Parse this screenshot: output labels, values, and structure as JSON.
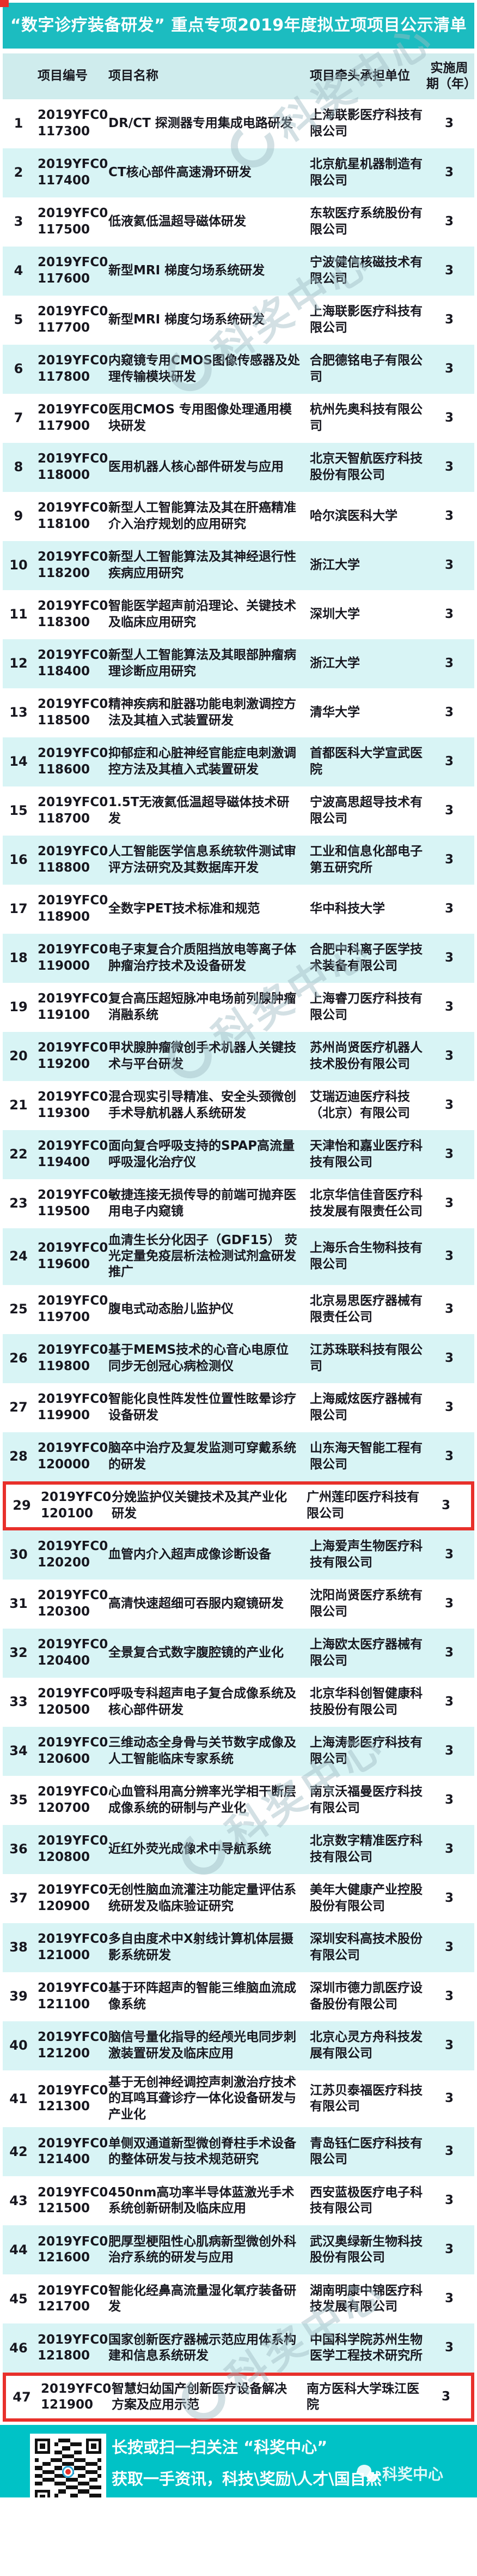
{
  "page": {
    "title": "“数字诊疗装备研发” 重点专项2019年度拟立项项目公示清单"
  },
  "table": {
    "headers": {
      "code": "项目编号",
      "name": "项目名称",
      "org": "项目牵头承担单位",
      "period": "实施周期（年）"
    },
    "rows": [
      {
        "no": "1",
        "code": "2019YFC0 117300",
        "name": "DR/CT 探测器专用集成电路研发",
        "org": "上海联影医疗科技有限公司",
        "period": "3",
        "highlight": false
      },
      {
        "no": "2",
        "code": "2019YFC0 117400",
        "name": "CT核心部件高速滑环研发",
        "org": "北京航星机器制造有限公司",
        "period": "3",
        "highlight": false
      },
      {
        "no": "3",
        "code": "2019YFC0 117500",
        "name": "低液氦低温超导磁体研发",
        "org": "东软医疗系统股份有限公司",
        "period": "3",
        "highlight": false
      },
      {
        "no": "4",
        "code": "2019YFC0 117600",
        "name": "新型MRI 梯度匀场系统研发",
        "org": "宁波健信核磁技术有限公司",
        "period": "3",
        "highlight": false
      },
      {
        "no": "5",
        "code": "2019YFC0 117700",
        "name": "新型MRI 梯度匀场系统研发",
        "org": "上海联影医疗科技有限公司",
        "period": "3",
        "highlight": false
      },
      {
        "no": "6",
        "code": "2019YFC0 117800",
        "name": "内窥镜专用CMOS图像传感器及处理传输模块研发",
        "org": "合肥德铭电子有限公司",
        "period": "3",
        "highlight": false
      },
      {
        "no": "7",
        "code": "2019YFC0 117900",
        "name": "医用CMOS 专用图像处理通用模块研发",
        "org": "杭州先奥科技有限公司",
        "period": "3",
        "highlight": false
      },
      {
        "no": "8",
        "code": "2019YFC0 118000",
        "name": "医用机器人核心部件研发与应用",
        "org": "北京天智航医疗科技股份有限公司",
        "period": "3",
        "highlight": false
      },
      {
        "no": "9",
        "code": "2019YFC0 118100",
        "name": "新型人工智能算法及其在肝癌精准介入治疗规划的应用研究",
        "org": "哈尔滨医科大学",
        "period": "3",
        "highlight": false
      },
      {
        "no": "10",
        "code": "2019YFC0 118200",
        "name": "新型人工智能算法及其神经退行性疾病应用研究",
        "org": "浙江大学",
        "period": "3",
        "highlight": false
      },
      {
        "no": "11",
        "code": "2019YFC0 118300",
        "name": "智能医学超声前沿理论、关键技术及临床应用研究",
        "org": "深圳大学",
        "period": "3",
        "highlight": false
      },
      {
        "no": "12",
        "code": "2019YFC0 118400",
        "name": "新型人工智能算法及其眼部肿瘤病理诊断应用研究",
        "org": "浙江大学",
        "period": "3",
        "highlight": false
      },
      {
        "no": "13",
        "code": "2019YFC0 118500",
        "name": "精神疾病和脏器功能电刺激调控方法及其植入式装置研发",
        "org": "清华大学",
        "period": "3",
        "highlight": false
      },
      {
        "no": "14",
        "code": "2019YFC0 118600",
        "name": "抑郁症和心脏神经官能症电刺激调控方法及其植入式装置研发",
        "org": "首都医科大学宣武医院",
        "period": "3",
        "highlight": false
      },
      {
        "no": "15",
        "code": "2019YFC0 118700",
        "name": "1.5T无液氦低温超导磁体技术研发",
        "org": "宁波高思超导技术有限公司",
        "period": "3",
        "highlight": false
      },
      {
        "no": "16",
        "code": "2019YFC0 118800",
        "name": "人工智能医学信息系统软件测试审评方法研究及其数据库开发",
        "org": "工业和信息化部电子第五研究所",
        "period": "3",
        "highlight": false
      },
      {
        "no": "17",
        "code": "2019YFC0 118900",
        "name": "全数字PET技术标准和规范",
        "org": "华中科技大学",
        "period": "3",
        "highlight": false
      },
      {
        "no": "18",
        "code": "2019YFC0 119000",
        "name": "电子束复合介质阻挡放电等离子体肿瘤治疗技术及设备研发",
        "org": "合肥中科离子医学技术装备有限公司",
        "period": "3",
        "highlight": false
      },
      {
        "no": "19",
        "code": "2019YFC0 119100",
        "name": "复合高压超短脉冲电场前列腺肿瘤消融系统",
        "org": "上海睿刀医疗科技有限公司",
        "period": "3",
        "highlight": false
      },
      {
        "no": "20",
        "code": "2019YFC0 119200",
        "name": "甲状腺肿瘤微创手术机器人关键技术与平台研发",
        "org": "苏州尚贤医疗机器人技术股份有限公司",
        "period": "3",
        "highlight": false
      },
      {
        "no": "21",
        "code": "2019YFC0 119300",
        "name": "混合现实引导精准、安全头颈微创手术导航机器人系统研发",
        "org": "艾瑞迈迪医疗科技（北京）有限公司",
        "period": "3",
        "highlight": false
      },
      {
        "no": "22",
        "code": "2019YFC0 119400",
        "name": "面向复合呼吸支持的SPAP高流量呼吸湿化治疗仪",
        "org": "天津怡和嘉业医疗科技有限公司",
        "period": "3",
        "highlight": false
      },
      {
        "no": "23",
        "code": "2019YFC0 119500",
        "name": "敏捷连接无损传导的前端可抛弃医用电子内窥镜",
        "org": "北京华信佳音医疗科技发展有限责任公司",
        "period": "3",
        "highlight": false
      },
      {
        "no": "24",
        "code": "2019YFC0 119600",
        "name": "血清生长分化因子（GDF15） 荧光定量免疫层析法检测试剂盒研发推广",
        "org": "上海乐合生物科技有限公司",
        "period": "3",
        "highlight": false
      },
      {
        "no": "25",
        "code": "2019YFC0 119700",
        "name": "腹电式动态胎儿监护仪",
        "org": "北京易思医疗器械有限责任公司",
        "period": "3",
        "highlight": false
      },
      {
        "no": "26",
        "code": "2019YFC0 119800",
        "name": "基于MEMS技术的心音心电原位同步无创冠心病检测仪",
        "org": "江苏珠联科技有限公司",
        "period": "3",
        "highlight": false
      },
      {
        "no": "27",
        "code": "2019YFC0 119900",
        "name": "智能化良性阵发性位置性眩晕诊疗设备研发",
        "org": "上海威炫医疗器械有限公司",
        "period": "3",
        "highlight": false
      },
      {
        "no": "28",
        "code": "2019YFC0 120000",
        "name": "脑卒中治疗及复发监测可穿戴系统的研发",
        "org": "山东海天智能工程有限公司",
        "period": "3",
        "highlight": false
      },
      {
        "no": "29",
        "code": "2019YFC0 120100",
        "name": "分娩监护仪关键技术及其产业化研发",
        "org": "广州莲印医疗科技有限公司",
        "period": "3",
        "highlight": true
      },
      {
        "no": "30",
        "code": "2019YFC0 120200",
        "name": "血管内介入超声成像诊断设备",
        "org": "上海爱声生物医疗科技有限公司",
        "period": "3",
        "highlight": false
      },
      {
        "no": "31",
        "code": "2019YFC0 120300",
        "name": "高清快速超细可吞服内窥镜研发",
        "org": "沈阳尚贤医疗系统有限公司",
        "period": "3",
        "highlight": false
      },
      {
        "no": "32",
        "code": "2019YFC0 120400",
        "name": "全景复合式数字腹腔镜的产业化",
        "org": "上海欧太医疗器械有限公司",
        "period": "3",
        "highlight": false
      },
      {
        "no": "33",
        "code": "2019YFC0 120500",
        "name": "呼吸专科超声电子复合成像系统及核心部件研发",
        "org": "北京华科创智健康科技股份有限公司",
        "period": "3",
        "highlight": false
      },
      {
        "no": "34",
        "code": "2019YFC0 120600",
        "name": "三维动态全身骨与关节数字成像及人工智能临床专家系统",
        "org": "上海涛影医疗科技有限公司",
        "period": "3",
        "highlight": false
      },
      {
        "no": "35",
        "code": "2019YFC0 120700",
        "name": "心血管科用高分辨率光学相干断层成像系统的研制与产业化",
        "org": "南京沃福曼医疗科技有限公司",
        "period": "3",
        "highlight": false
      },
      {
        "no": "36",
        "code": "2019YFC0 120800",
        "name": "近红外荧光成像术中导航系统",
        "org": "北京数字精准医疗科技有限公司",
        "period": "3",
        "highlight": false
      },
      {
        "no": "37",
        "code": "2019YFC0 120900",
        "name": "无创性脑血流灌注功能定量评估系统研发及临床验证研究",
        "org": "美年大健康产业控股股份有限公司",
        "period": "3",
        "highlight": false
      },
      {
        "no": "38",
        "code": "2019YFC0 121000",
        "name": "多自由度术中X射线计算机体层摄影系统研发",
        "org": "深圳安科高技术股份有限公司",
        "period": "3",
        "highlight": false
      },
      {
        "no": "39",
        "code": "2019YFC0 121100",
        "name": "基于环阵超声的智能三维脑血流成像系统",
        "org": "深圳市德力凯医疗设备股份有限公司",
        "period": "3",
        "highlight": false
      },
      {
        "no": "40",
        "code": "2019YFC0 121200",
        "name": "脑信号量化指导的经颅光电同步刺激装置研发及临床应用",
        "org": "北京心灵方舟科技发展有限公司",
        "period": "3",
        "highlight": false
      },
      {
        "no": "41",
        "code": "2019YFC0 121300",
        "name": "基于无创神经调控声刺激治疗技术的耳鸣耳聋诊疗一体化设备研发与产业化",
        "org": "江苏贝泰福医疗科技有限公司",
        "period": "3",
        "highlight": false
      },
      {
        "no": "42",
        "code": "2019YFC0 121400",
        "name": "单侧双通道新型微创脊柱手术设备的整体研发与技术规范研究",
        "org": "青岛钰仁医疗科技有限公司",
        "period": "3",
        "highlight": false
      },
      {
        "no": "43",
        "code": "2019YFC0 121500",
        "name": "450nm高功率半导体蓝激光手术系统创新研制及临床应用",
        "org": "西安蓝极医疗电子科技有限公司",
        "period": "3",
        "highlight": false
      },
      {
        "no": "44",
        "code": "2019YFC0 121600",
        "name": "肥厚型梗阻性心肌病新型微创外科治疗系统的研发与应用",
        "org": "武汉奥绿新生物科技股份有限公司",
        "period": "3",
        "highlight": false
      },
      {
        "no": "45",
        "code": "2019YFC0 121700",
        "name": "智能化经鼻高流量湿化氧疗装备研发",
        "org": "湖南明康中锦医疗科技发展有限公司",
        "period": "3",
        "highlight": false
      },
      {
        "no": "46",
        "code": "2019YFC0 121800",
        "name": "国家创新医疗器械示范应用体系构建和信息系统研发",
        "org": "中国科学院苏州生物医学工程技术研究所",
        "period": "3",
        "highlight": false
      },
      {
        "no": "47",
        "code": "2019YFC0 121900",
        "name": "智慧妇幼国产创新医疗设备解决方案及应用示范",
        "org": "南方医科大学珠江医院",
        "period": "3",
        "highlight": true
      }
    ]
  },
  "watermark": {
    "text": "科奖中心"
  },
  "footer": {
    "line1": "长按或扫一扫关注 “科奖中心”",
    "line2": "获取一手资讯，科技\\奖励\\人才\\国自然",
    "brand": "科奖中心"
  },
  "colors": {
    "title_band": "#1cbcc0",
    "header_band": "#cfeced",
    "row_alt": "#d8f4f5",
    "highlight_border": "#e8302b",
    "footer_band": "#00c2c6"
  }
}
